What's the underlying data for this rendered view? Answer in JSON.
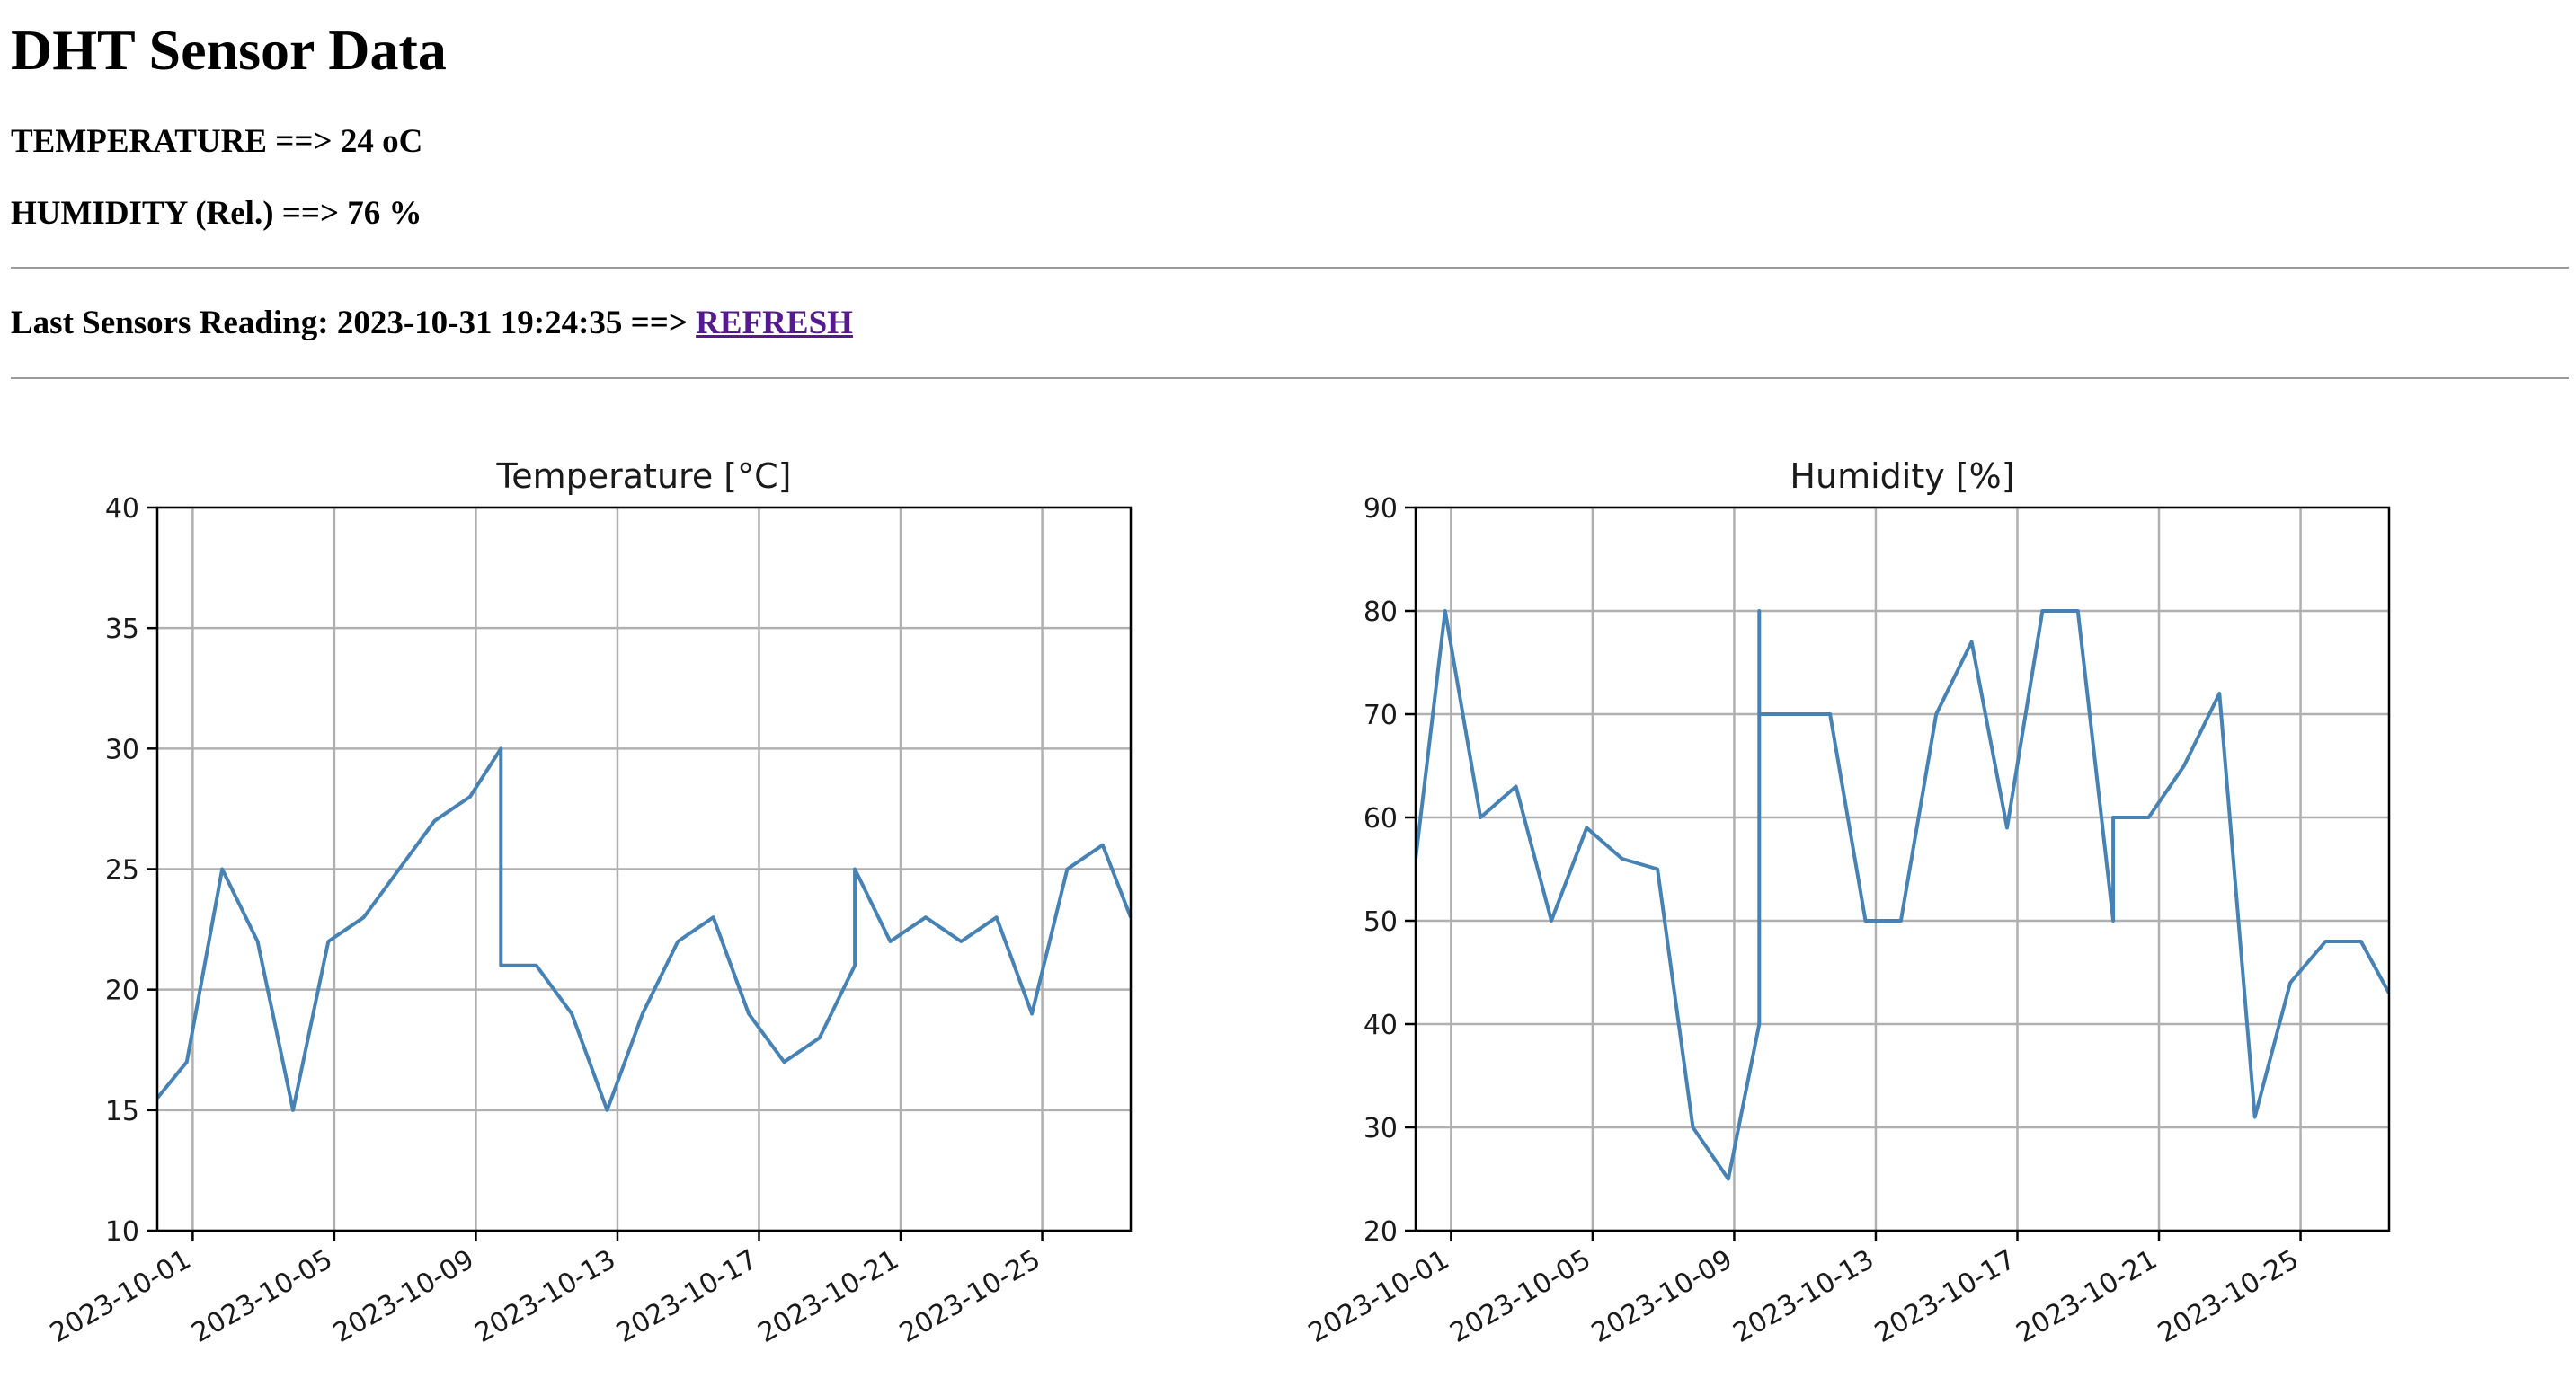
{
  "page": {
    "title": "DHT Sensor Data",
    "temperature_label": "TEMPERATURE ==> ",
    "temperature_value": "24",
    "temperature_unit": " oC",
    "humidity_label": "HUMIDITY (Rel.) ==> ",
    "humidity_value": "76",
    "humidity_unit": " %",
    "last_reading_label": "Last Sensors Reading: ",
    "last_reading_time": "2023-10-31 19:24:35",
    "last_reading_arrow": " ==> ",
    "refresh_link": "REFRESH"
  },
  "colors": {
    "line": "#4682b4",
    "grid": "#b0b0b0",
    "link": "#551a8b"
  },
  "chart_data": [
    {
      "type": "line",
      "title": "Temperature [°C]",
      "xlabel": "",
      "ylabel": "",
      "xlim": [
        "2023-09-30T00:00",
        "2023-10-27T12:00"
      ],
      "ylim": [
        10,
        40
      ],
      "grid": true,
      "x_ticks": [
        "2023-10-01",
        "2023-10-05",
        "2023-10-09",
        "2023-10-13",
        "2023-10-17",
        "2023-10-21",
        "2023-10-25"
      ],
      "y_ticks": [
        10,
        15,
        20,
        25,
        30,
        35,
        40
      ],
      "series": [
        {
          "points": [
            [
              "2023-09-30T00:00",
              15.5
            ],
            [
              "2023-09-30T20:00",
              17
            ],
            [
              "2023-10-01T20:00",
              25
            ],
            [
              "2023-10-02T20:00",
              22
            ],
            [
              "2023-10-03T20:00",
              15
            ],
            [
              "2023-10-04T20:00",
              22
            ],
            [
              "2023-10-05T20:00",
              23
            ],
            [
              "2023-10-06T20:00",
              25
            ],
            [
              "2023-10-07T20:00",
              27
            ],
            [
              "2023-10-08T20:00",
              28
            ],
            [
              "2023-10-09T17:00",
              30
            ],
            [
              "2023-10-09T17:00",
              21
            ],
            [
              "2023-10-10T17:00",
              21
            ],
            [
              "2023-10-11T17:00",
              19
            ],
            [
              "2023-10-12T17:00",
              15
            ],
            [
              "2023-10-13T17:00",
              19
            ],
            [
              "2023-10-14T17:00",
              22
            ],
            [
              "2023-10-15T17:00",
              23
            ],
            [
              "2023-10-16T17:00",
              19
            ],
            [
              "2023-10-17T17:00",
              17
            ],
            [
              "2023-10-18T17:00",
              18
            ],
            [
              "2023-10-19T17:00",
              21
            ],
            [
              "2023-10-19T17:00",
              25
            ],
            [
              "2023-10-20T17:00",
              22
            ],
            [
              "2023-10-21T17:00",
              23
            ],
            [
              "2023-10-22T17:00",
              22
            ],
            [
              "2023-10-23T17:00",
              23
            ],
            [
              "2023-10-24T17:00",
              19
            ],
            [
              "2023-10-25T17:00",
              25
            ],
            [
              "2023-10-26T17:00",
              26
            ],
            [
              "2023-10-27T12:00",
              23
            ]
          ]
        }
      ]
    },
    {
      "type": "line",
      "title": "Humidity [%]",
      "xlabel": "",
      "ylabel": "",
      "xlim": [
        "2023-09-30T00:00",
        "2023-10-27T12:00"
      ],
      "ylim": [
        20,
        90
      ],
      "grid": true,
      "x_ticks": [
        "2023-10-01",
        "2023-10-05",
        "2023-10-09",
        "2023-10-13",
        "2023-10-17",
        "2023-10-21",
        "2023-10-25"
      ],
      "y_ticks": [
        20,
        30,
        40,
        50,
        60,
        70,
        80,
        90
      ],
      "series": [
        {
          "points": [
            [
              "2023-09-30T00:00",
              56
            ],
            [
              "2023-09-30T20:00",
              80
            ],
            [
              "2023-10-01T20:00",
              60
            ],
            [
              "2023-10-02T20:00",
              63
            ],
            [
              "2023-10-03T20:00",
              50
            ],
            [
              "2023-10-04T20:00",
              59
            ],
            [
              "2023-10-05T20:00",
              56
            ],
            [
              "2023-10-06T20:00",
              55
            ],
            [
              "2023-10-07T20:00",
              30
            ],
            [
              "2023-10-08T20:00",
              25
            ],
            [
              "2023-10-09T17:00",
              40
            ],
            [
              "2023-10-09T17:00",
              80
            ],
            [
              "2023-10-09T17:00",
              70
            ],
            [
              "2023-10-10T17:00",
              70
            ],
            [
              "2023-10-11T17:00",
              70
            ],
            [
              "2023-10-12T17:00",
              50
            ],
            [
              "2023-10-13T17:00",
              50
            ],
            [
              "2023-10-14T17:00",
              70
            ],
            [
              "2023-10-15T17:00",
              77
            ],
            [
              "2023-10-16T17:00",
              59
            ],
            [
              "2023-10-17T17:00",
              80
            ],
            [
              "2023-10-18T17:00",
              80
            ],
            [
              "2023-10-19T17:00",
              50
            ],
            [
              "2023-10-19T17:00",
              60
            ],
            [
              "2023-10-20T17:00",
              60
            ],
            [
              "2023-10-21T17:00",
              65
            ],
            [
              "2023-10-22T17:00",
              72
            ],
            [
              "2023-10-23T17:00",
              31
            ],
            [
              "2023-10-24T17:00",
              44
            ],
            [
              "2023-10-25T17:00",
              48
            ],
            [
              "2023-10-26T17:00",
              48
            ],
            [
              "2023-10-27T12:00",
              43
            ]
          ]
        }
      ]
    }
  ]
}
